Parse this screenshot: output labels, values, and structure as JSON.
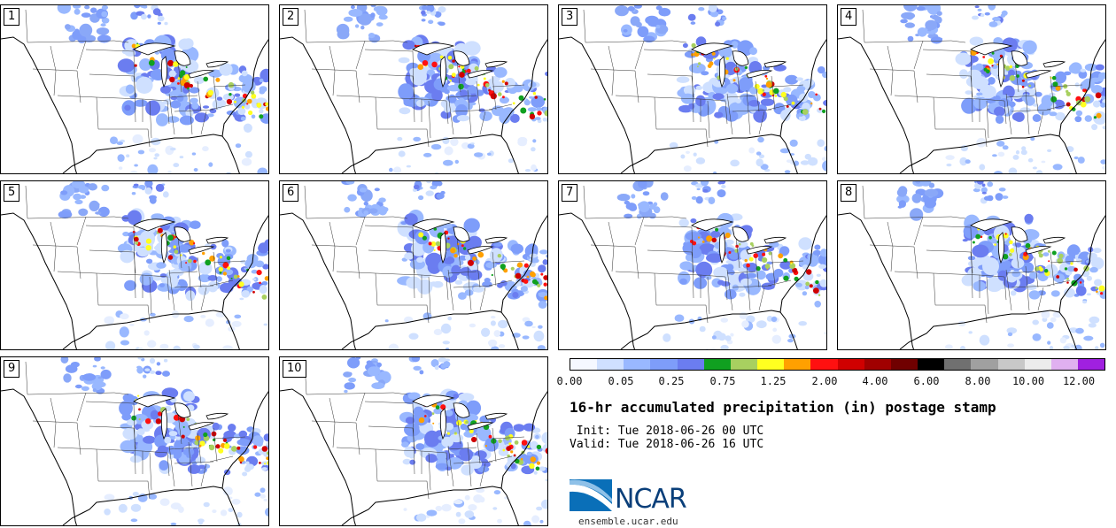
{
  "panels": [
    {
      "label": "1"
    },
    {
      "label": "2"
    },
    {
      "label": "3"
    },
    {
      "label": "4"
    },
    {
      "label": "5"
    },
    {
      "label": "6"
    },
    {
      "label": "7"
    },
    {
      "label": "8"
    },
    {
      "label": "9"
    },
    {
      "label": "10"
    }
  ],
  "colorbar": {
    "colors": [
      "#f5f8ff",
      "#cfe0ff",
      "#99b8ff",
      "#7e9dfa",
      "#6b7df0",
      "#10a020",
      "#a8d060",
      "#ffff20",
      "#ffa000",
      "#ff1010",
      "#d00000",
      "#a00000",
      "#700000",
      "#000000",
      "#707070",
      "#a0a0a0",
      "#c8c8c8",
      "#ececec",
      "#e0b0f0",
      "#a020e0"
    ],
    "ticks": [
      "0.00",
      "0.05",
      "0.25",
      "0.75",
      "1.25",
      "2.00",
      "4.00",
      "6.00",
      "8.00",
      "10.00",
      "12.00"
    ]
  },
  "title": "16-hr accumulated precipitation (in) postage stamp",
  "init_line": " Init: Tue 2018-06-26 00 UTC",
  "valid_line": "Valid: Tue 2018-06-26 16 UTC",
  "logo": {
    "text": "NCAR",
    "url": "ensemble.ucar.edu"
  }
}
